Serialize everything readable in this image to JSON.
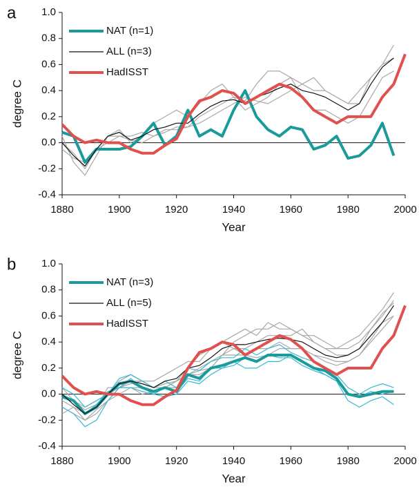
{
  "chart_data": [
    {
      "type": "line",
      "panel_label": "a",
      "x_label": "Year",
      "y_label": "degree C",
      "xlim": [
        1880,
        2000
      ],
      "ylim": [
        -0.4,
        1.0
      ],
      "xticks": [
        1880,
        1900,
        1920,
        1940,
        1960,
        1980,
        2000
      ],
      "yticks": [
        -0.4,
        -0.2,
        {
          "value": 0,
          "label": "0.0"
        },
        0.2,
        0.4,
        0.6,
        0.8,
        {
          "value": 1,
          "label": "1.0"
        }
      ],
      "hline": 0,
      "x": [
        1880,
        1884,
        1888,
        1892,
        1896,
        1900,
        1904,
        1908,
        1912,
        1916,
        1920,
        1924,
        1928,
        1932,
        1936,
        1940,
        1944,
        1948,
        1952,
        1956,
        1960,
        1964,
        1968,
        1972,
        1976,
        1980,
        1984,
        1988,
        1992,
        1996,
        2000
      ],
      "series": [
        {
          "color": "#a8a8a8",
          "width": 1.2,
          "values": [
            0.05,
            -0.15,
            -0.25,
            -0.1,
            0.05,
            0.1,
            0.0,
            0.05,
            0.15,
            0.2,
            0.25,
            0.2,
            0.3,
            0.4,
            0.45,
            0.35,
            0.32,
            0.45,
            0.55,
            0.55,
            0.5,
            0.45,
            0.5,
            0.4,
            0.35,
            0.3,
            0.3,
            0.5,
            0.6,
            0.75,
            null
          ]
        },
        {
          "color": "#a8a8a8",
          "width": 1.2,
          "values": [
            0.0,
            -0.08,
            -0.2,
            -0.05,
            0.05,
            0.05,
            0.05,
            0.08,
            0.05,
            0.1,
            0.1,
            0.12,
            0.2,
            0.25,
            0.3,
            0.35,
            0.25,
            0.3,
            0.35,
            0.45,
            0.5,
            0.35,
            0.25,
            0.25,
            0.2,
            0.15,
            0.2,
            0.35,
            0.5,
            0.55,
            null
          ]
        },
        {
          "color": "#a8a8a8",
          "width": 1.2,
          "values": [
            -0.05,
            -0.12,
            -0.15,
            -0.05,
            0.0,
            0.05,
            0.02,
            0.0,
            0.05,
            0.08,
            0.12,
            0.12,
            0.15,
            0.2,
            0.25,
            0.3,
            0.35,
            0.32,
            0.3,
            0.35,
            0.4,
            0.45,
            0.4,
            0.4,
            0.35,
            0.3,
            0.4,
            0.5,
            0.6,
            0.65,
            null
          ]
        },
        {
          "name": "NAT (n=1)",
          "color": "#1a9a9a",
          "width": 4,
          "values": [
            0.08,
            0.05,
            -0.15,
            -0.05,
            -0.05,
            -0.05,
            -0.03,
            0.05,
            0.15,
            -0.02,
            0.05,
            0.25,
            0.05,
            0.1,
            0.05,
            0.25,
            0.4,
            0.2,
            0.1,
            0.05,
            0.12,
            0.1,
            -0.05,
            -0.02,
            0.05,
            -0.12,
            -0.1,
            -0.02,
            0.15,
            -0.1,
            null
          ]
        },
        {
          "name": "ALL (n=3)",
          "color": "#111111",
          "width": 1.2,
          "values": [
            0.0,
            -0.1,
            -0.18,
            -0.05,
            0.05,
            0.08,
            0.02,
            0.05,
            0.1,
            0.12,
            0.15,
            0.15,
            0.22,
            0.28,
            0.32,
            0.33,
            0.3,
            0.35,
            0.38,
            0.42,
            0.45,
            0.4,
            0.38,
            0.35,
            0.3,
            0.25,
            0.3,
            0.45,
            0.58,
            0.65,
            null
          ]
        },
        {
          "name": "HadISST",
          "color": "#e0504e",
          "width": 4,
          "values": [
            0.14,
            0.05,
            0.0,
            0.02,
            0.0,
            0.0,
            -0.05,
            -0.08,
            -0.08,
            -0.02,
            0.03,
            0.2,
            0.32,
            0.35,
            0.4,
            0.38,
            0.3,
            0.35,
            0.4,
            0.45,
            0.42,
            0.35,
            0.25,
            0.2,
            0.15,
            0.2,
            0.2,
            0.2,
            0.35,
            0.45,
            0.68
          ]
        }
      ]
    },
    {
      "type": "line",
      "panel_label": "b",
      "x_label": "Year",
      "y_label": "degree C",
      "xlim": [
        1880,
        2000
      ],
      "ylim": [
        -0.4,
        1.0
      ],
      "xticks": [
        1880,
        1900,
        1920,
        1940,
        1960,
        1980,
        2000
      ],
      "yticks": [
        -0.4,
        -0.2,
        {
          "value": 0,
          "label": "0.0"
        },
        0.2,
        0.4,
        0.6,
        0.8,
        {
          "value": 1,
          "label": "1.0"
        }
      ],
      "hline": 0,
      "x": [
        1880,
        1884,
        1888,
        1892,
        1896,
        1900,
        1904,
        1908,
        1912,
        1916,
        1920,
        1924,
        1928,
        1932,
        1936,
        1940,
        1944,
        1948,
        1952,
        1956,
        1960,
        1964,
        1968,
        1972,
        1976,
        1980,
        1984,
        1988,
        1992,
        1996,
        2000
      ],
      "series": [
        {
          "color": "#a8a8a8",
          "width": 1.2,
          "values": [
            -0.1,
            -0.15,
            -0.2,
            -0.15,
            -0.05,
            0.05,
            0.08,
            0.1,
            0.1,
            0.15,
            0.2,
            0.25,
            0.25,
            0.35,
            0.4,
            0.45,
            0.5,
            0.45,
            0.55,
            0.5,
            0.5,
            0.45,
            0.4,
            0.35,
            0.35,
            0.4,
            0.45,
            0.55,
            0.65,
            0.78,
            null
          ]
        },
        {
          "color": "#a8a8a8",
          "width": 1.2,
          "values": [
            0.05,
            -0.05,
            -0.1,
            -0.05,
            0.0,
            0.1,
            0.15,
            0.1,
            0.05,
            0.05,
            0.05,
            0.15,
            0.15,
            0.2,
            0.3,
            0.35,
            0.3,
            0.35,
            0.35,
            0.4,
            0.35,
            0.35,
            0.3,
            0.28,
            0.25,
            0.25,
            0.3,
            0.4,
            0.5,
            0.6,
            null
          ]
        },
        {
          "color": "#a8a8a8",
          "width": 1.2,
          "values": [
            -0.05,
            -0.1,
            -0.15,
            -0.1,
            0.05,
            0.05,
            0.05,
            0.05,
            0.0,
            0.05,
            0.1,
            0.2,
            0.3,
            0.35,
            0.4,
            0.35,
            0.35,
            0.4,
            0.45,
            0.45,
            0.45,
            0.5,
            0.4,
            0.35,
            0.3,
            0.3,
            0.35,
            0.5,
            0.6,
            0.72,
            null
          ]
        },
        {
          "color": "#a8a8a8",
          "width": 1.2,
          "values": [
            -0.15,
            -0.1,
            -0.2,
            -0.12,
            -0.05,
            0.0,
            0.05,
            0.0,
            0.02,
            0.05,
            0.1,
            0.15,
            0.2,
            0.25,
            0.3,
            0.4,
            0.45,
            0.5,
            0.5,
            0.55,
            0.5,
            0.45,
            0.45,
            0.4,
            0.35,
            0.35,
            0.4,
            0.5,
            0.62,
            0.7,
            null
          ]
        },
        {
          "color": "#a8a8a8",
          "width": 1.2,
          "values": [
            0.0,
            -0.05,
            -0.12,
            -0.08,
            0.0,
            0.05,
            0.1,
            0.1,
            0.05,
            0.08,
            0.1,
            0.15,
            0.18,
            0.2,
            0.3,
            0.3,
            0.3,
            0.28,
            0.3,
            0.35,
            0.35,
            0.35,
            0.3,
            0.25,
            0.22,
            0.25,
            0.3,
            0.42,
            0.55,
            0.6,
            null
          ]
        },
        {
          "color": "#35b9d2",
          "width": 1.2,
          "values": [
            -0.1,
            -0.15,
            -0.25,
            -0.2,
            -0.05,
            0.05,
            0.12,
            0.05,
            0.0,
            -0.02,
            0.0,
            0.1,
            0.08,
            0.15,
            0.2,
            0.25,
            0.2,
            0.2,
            0.25,
            0.25,
            0.3,
            0.25,
            0.2,
            0.15,
            0.1,
            -0.05,
            -0.1,
            -0.05,
            -0.02,
            -0.08,
            null
          ]
        },
        {
          "color": "#35b9d2",
          "width": 1.2,
          "values": [
            0.05,
            0.0,
            -0.1,
            -0.05,
            0.0,
            0.12,
            0.15,
            0.1,
            0.05,
            0.1,
            0.05,
            0.2,
            0.18,
            0.25,
            0.28,
            0.28,
            0.35,
            0.3,
            0.35,
            0.38,
            0.32,
            0.28,
            0.25,
            0.2,
            0.15,
            0.05,
            0.0,
            0.05,
            0.08,
            0.05,
            null
          ]
        },
        {
          "color": "#35b9d2",
          "width": 1.2,
          "values": [
            0.0,
            -0.05,
            -0.15,
            -0.08,
            0.02,
            0.05,
            0.05,
            0.02,
            0.0,
            0.05,
            0.02,
            0.12,
            0.1,
            0.2,
            0.2,
            0.22,
            0.28,
            0.25,
            0.3,
            0.28,
            0.28,
            0.22,
            0.18,
            0.15,
            0.1,
            0.0,
            -0.02,
            0.02,
            0.0,
            0.02,
            null
          ]
        },
        {
          "name": "NAT (n=3)",
          "color": "#1a9a9a",
          "width": 4,
          "values": [
            -0.02,
            -0.05,
            -0.15,
            -0.1,
            0.0,
            0.08,
            0.1,
            0.05,
            0.02,
            0.05,
            0.02,
            0.15,
            0.12,
            0.2,
            0.22,
            0.25,
            0.28,
            0.25,
            0.3,
            0.3,
            0.3,
            0.25,
            0.2,
            0.18,
            0.12,
            0.0,
            -0.02,
            0.0,
            0.02,
            0.02,
            null
          ]
        },
        {
          "name": "ALL (n=5)",
          "color": "#111111",
          "width": 1.2,
          "values": [
            0.0,
            -0.08,
            -0.15,
            -0.1,
            0.0,
            0.08,
            0.1,
            0.08,
            0.05,
            0.1,
            0.12,
            0.2,
            0.22,
            0.28,
            0.35,
            0.38,
            0.38,
            0.4,
            0.42,
            0.43,
            0.42,
            0.4,
            0.35,
            0.3,
            0.28,
            0.3,
            0.35,
            0.45,
            0.55,
            0.68,
            null
          ]
        },
        {
          "name": "HadISST",
          "color": "#e0504e",
          "width": 4,
          "values": [
            0.14,
            0.05,
            0.0,
            0.02,
            0.0,
            0.0,
            -0.05,
            -0.08,
            -0.08,
            -0.02,
            0.03,
            0.2,
            0.32,
            0.35,
            0.4,
            0.38,
            0.3,
            0.35,
            0.4,
            0.45,
            0.42,
            0.35,
            0.25,
            0.2,
            0.15,
            0.2,
            0.2,
            0.2,
            0.35,
            0.45,
            0.68
          ]
        }
      ]
    }
  ]
}
